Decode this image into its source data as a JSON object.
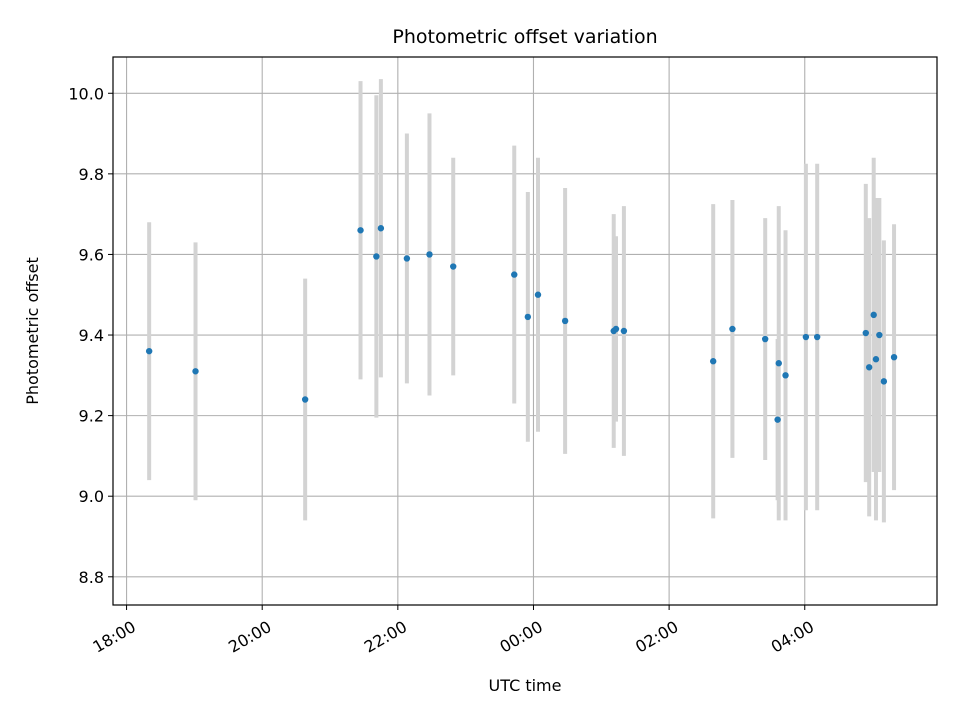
{
  "chart_data": {
    "type": "scatter",
    "title": "Photometric offset variation",
    "xlabel": "UTC time",
    "ylabel": "Photometric offset",
    "x_ticks": [
      "18:00",
      "20:00",
      "22:00",
      "00:00",
      "02:00",
      "04:00"
    ],
    "y_ticks": [
      "8.8",
      "9.0",
      "9.2",
      "9.4",
      "9.6",
      "9.8",
      "10.0"
    ],
    "grid": true,
    "colors": {
      "point": "#1f77b4",
      "errorbar": "#d3d3d3",
      "grid": "#b0b0b0"
    },
    "series": [
      {
        "points": [
          {
            "t": "18:20",
            "y": 9.36,
            "err": 0.32
          },
          {
            "t": "19:01",
            "y": 9.31,
            "err": 0.32
          },
          {
            "t": "20:38",
            "y": 9.24,
            "err": 0.3
          },
          {
            "t": "21:27",
            "y": 9.66,
            "err": 0.37
          },
          {
            "t": "21:41",
            "y": 9.595,
            "err": 0.4
          },
          {
            "t": "21:45",
            "y": 9.665,
            "err": 0.37
          },
          {
            "t": "22:08",
            "y": 9.59,
            "err": 0.31
          },
          {
            "t": "22:28",
            "y": 9.6,
            "err": 0.35
          },
          {
            "t": "22:49",
            "y": 9.57,
            "err": 0.27
          },
          {
            "t": "23:43",
            "y": 9.55,
            "err": 0.32
          },
          {
            "t": "23:55",
            "y": 9.445,
            "err": 0.31
          },
          {
            "t": "00:04",
            "y": 9.5,
            "err": 0.34
          },
          {
            "t": "00:28",
            "y": 9.435,
            "err": 0.33
          },
          {
            "t": "01:11",
            "y": 9.41,
            "err": 0.29
          },
          {
            "t": "01:13",
            "y": 9.415,
            "err": 0.23
          },
          {
            "t": "01:20",
            "y": 9.41,
            "err": 0.31
          },
          {
            "t": "02:39",
            "y": 9.335,
            "err": 0.39
          },
          {
            "t": "02:56",
            "y": 9.415,
            "err": 0.32
          },
          {
            "t": "03:25",
            "y": 9.39,
            "err": 0.3
          },
          {
            "t": "03:36",
            "y": 9.19,
            "err": 0.2
          },
          {
            "t": "03:37",
            "y": 9.33,
            "err": 0.39
          },
          {
            "t": "03:43",
            "y": 9.3,
            "err": 0.36
          },
          {
            "t": "04:01",
            "y": 9.395,
            "err": 0.43
          },
          {
            "t": "04:11",
            "y": 9.395,
            "err": 0.43
          },
          {
            "t": "04:54",
            "y": 9.405,
            "err": 0.37
          },
          {
            "t": "04:57",
            "y": 9.32,
            "err": 0.37
          },
          {
            "t": "05:01",
            "y": 9.45,
            "err": 0.39
          },
          {
            "t": "05:03",
            "y": 9.34,
            "err": 0.4
          },
          {
            "t": "05:06",
            "y": 9.4,
            "err": 0.34
          },
          {
            "t": "05:10",
            "y": 9.285,
            "err": 0.35
          },
          {
            "t": "05:19",
            "y": 9.345,
            "err": 0.33
          }
        ]
      }
    ],
    "xlim": [
      "17:48",
      "05:57"
    ],
    "ylim": [
      8.73,
      10.09
    ]
  }
}
